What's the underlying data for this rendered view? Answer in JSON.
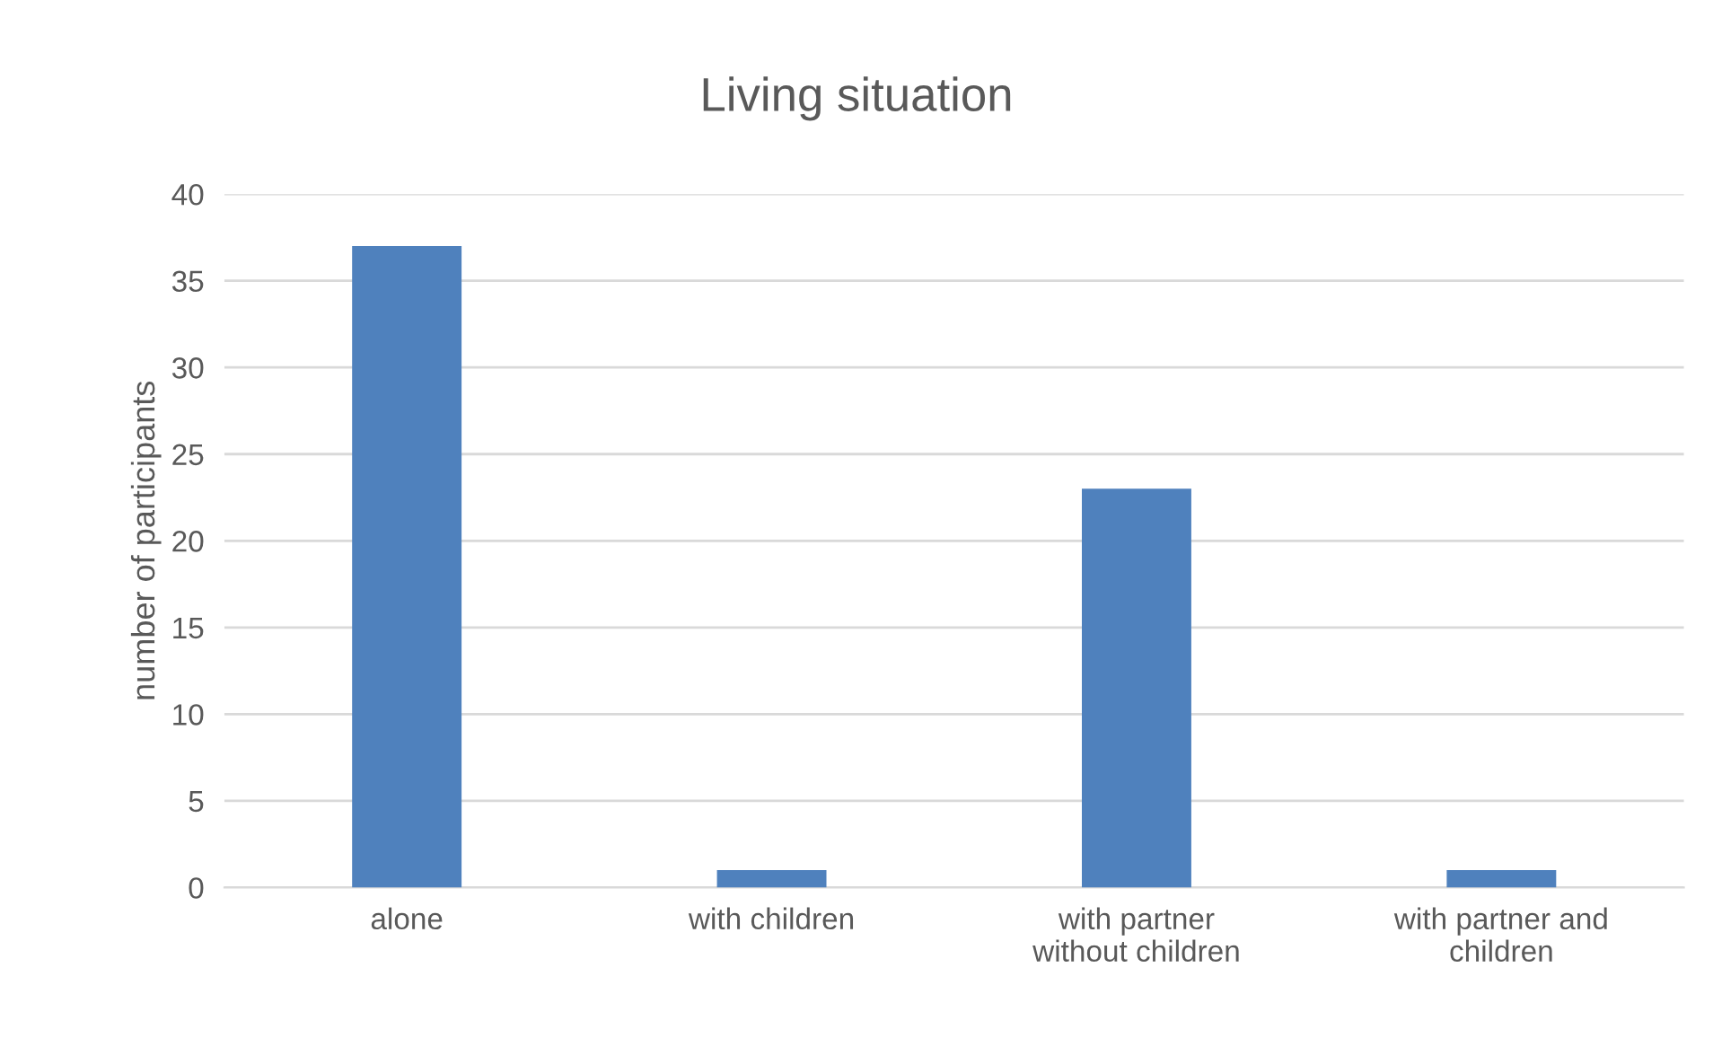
{
  "chart_data": {
    "type": "bar",
    "title": "Living situation",
    "ylabel": "number of participants",
    "categories": [
      "alone",
      "with children",
      "with partner without children",
      "with partner and children"
    ],
    "values": [
      37,
      1,
      23,
      1
    ],
    "color": "#4f81bd",
    "ylim": [
      0,
      40
    ],
    "yticks": [
      0,
      5,
      10,
      15,
      20,
      25,
      30,
      35,
      40
    ],
    "grid": "y",
    "legend": false
  }
}
